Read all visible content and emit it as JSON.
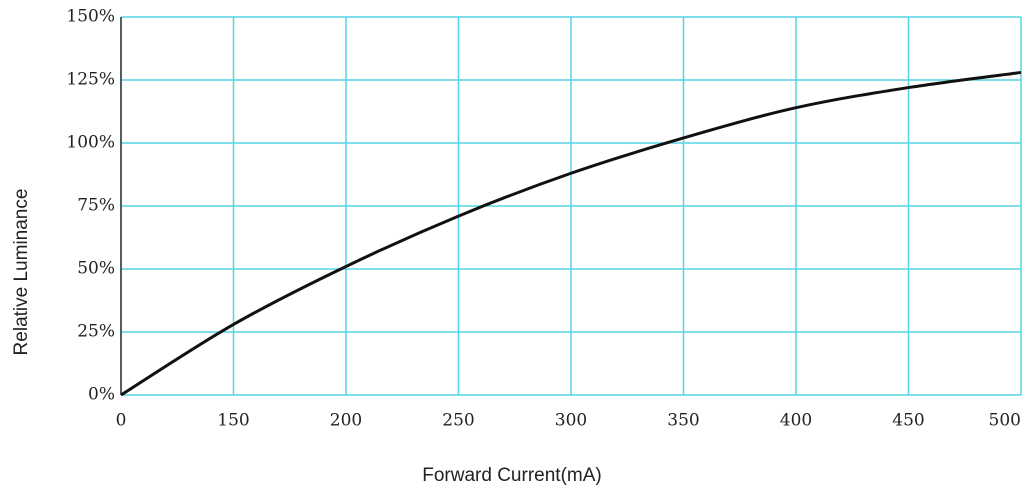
{
  "chart_data": {
    "type": "line",
    "x_label": "Forward Current(mA)",
    "y_label": "Relative Luminance",
    "categories": [
      "0",
      "150",
      "200",
      "250",
      "300",
      "350",
      "400",
      "450",
      "500"
    ],
    "series": [
      {
        "color": "#111111",
        "values": [
          0,
          28,
          51,
          71,
          88,
          102,
          114,
          122,
          128
        ]
      }
    ],
    "ylim": [
      0,
      150
    ],
    "yticks": [
      {
        "value": 0,
        "label": "0%"
      },
      {
        "value": 25,
        "label": "25%"
      },
      {
        "value": 50,
        "label": "50%"
      },
      {
        "value": 75,
        "label": "75%"
      },
      {
        "value": 100,
        "label": "100%"
      },
      {
        "value": 125,
        "label": "125%"
      },
      {
        "value": 150,
        "label": "150%"
      }
    ],
    "grid": true,
    "grid_color": "#55d6e6"
  }
}
